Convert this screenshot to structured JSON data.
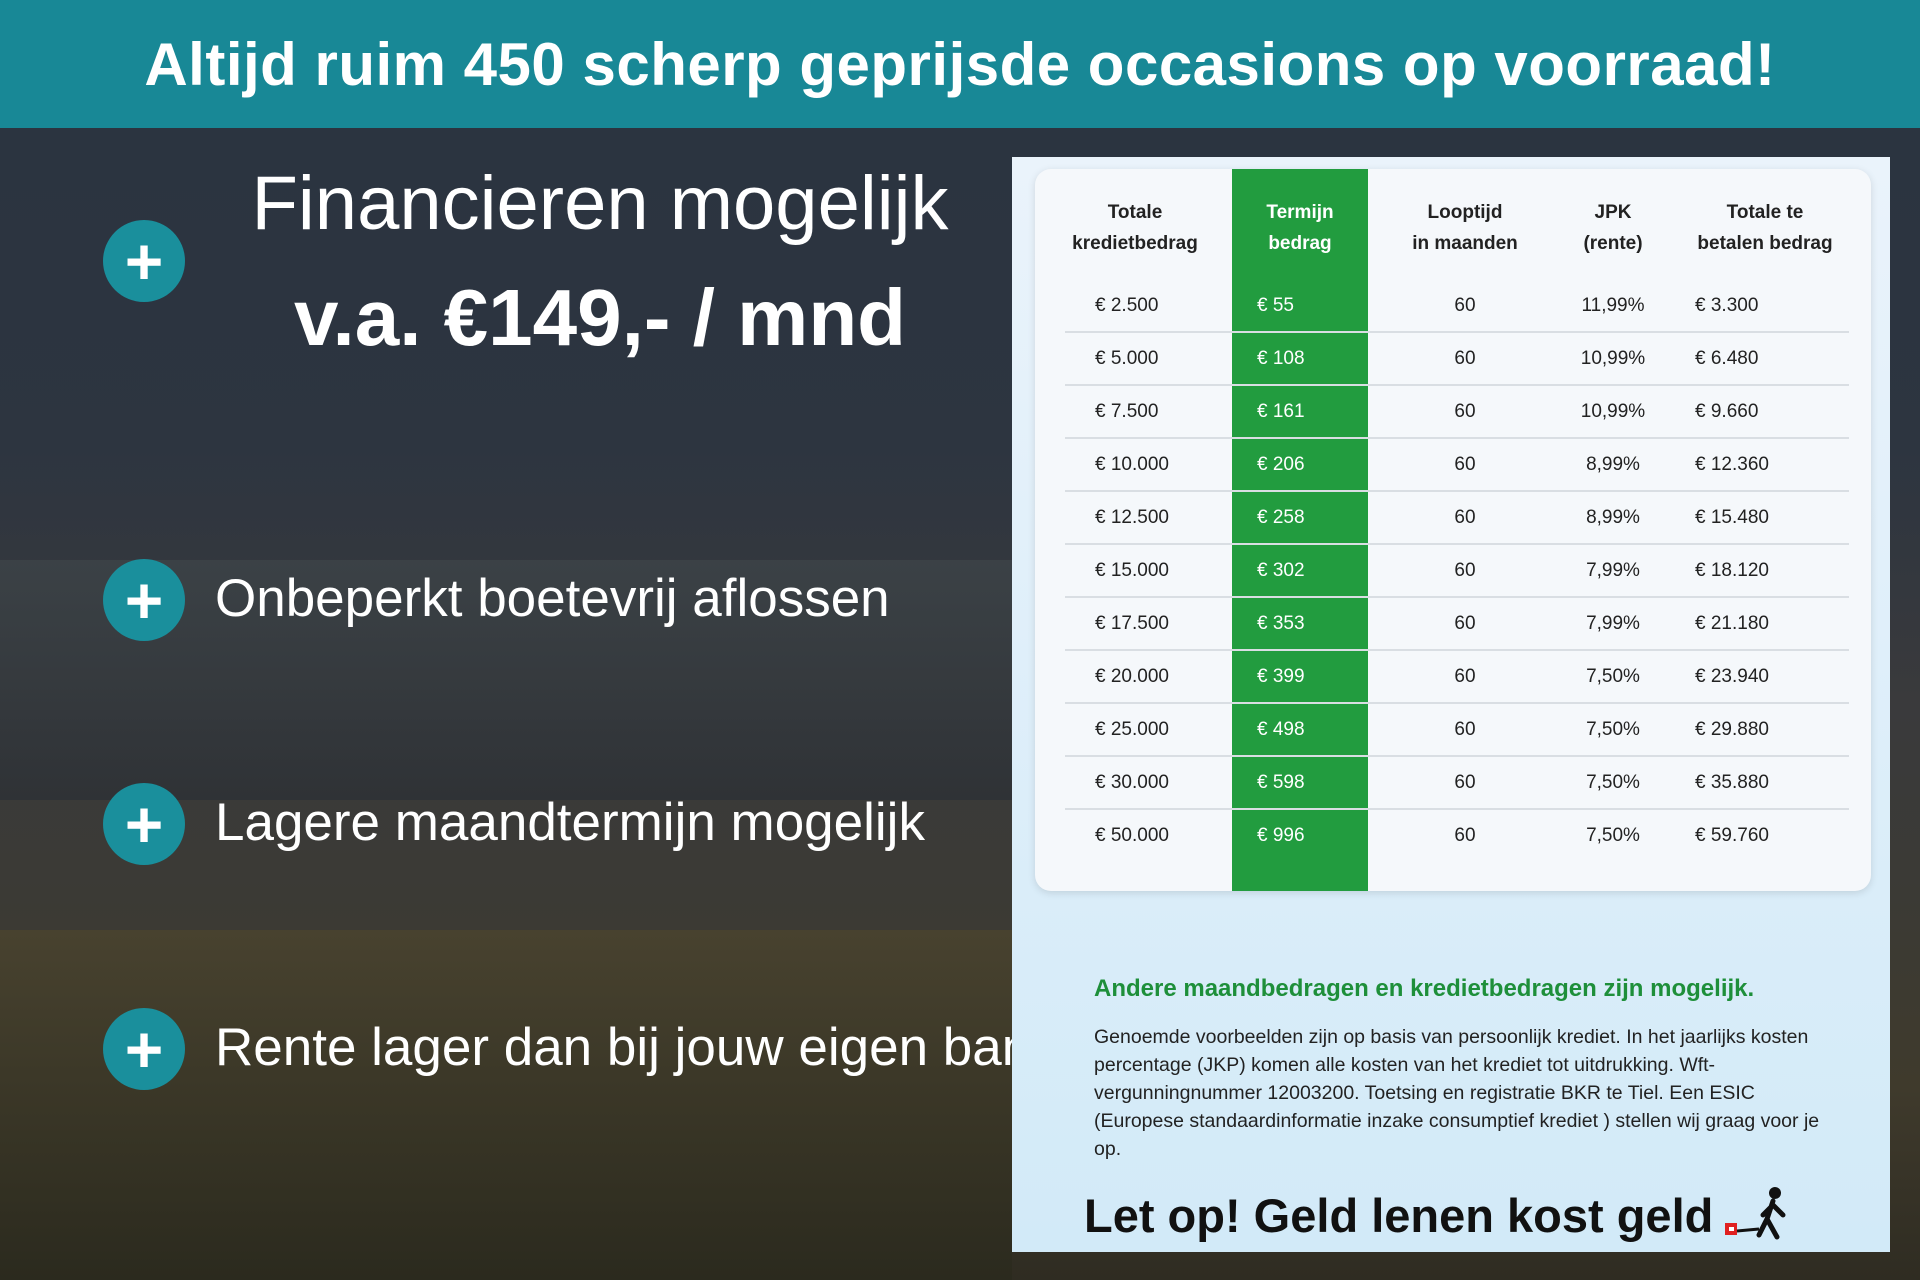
{
  "header": {
    "title": "Altijd ruim 450 scherp geprijsde occasions op voorraad!"
  },
  "financing": {
    "line1": "Financieren mogelijk",
    "line2": "v.a. €149,- / mnd"
  },
  "features": [
    "Onbeperkt boetevrij aflossen",
    "Lagere maandtermijn mogelijk",
    "Rente lager dan bij jouw eigen bank"
  ],
  "table": {
    "headers": [
      [
        "Totale",
        "kredietbedrag"
      ],
      [
        "Termijn",
        "bedrag"
      ],
      [
        "Looptijd",
        "in maanden"
      ],
      [
        "JPK",
        "(rente)"
      ],
      [
        "Totale te",
        "betalen bedrag"
      ]
    ],
    "rows": [
      [
        "€ 2.500",
        "€ 55",
        "60",
        "11,99%",
        "€ 3.300"
      ],
      [
        "€ 5.000",
        "€ 108",
        "60",
        "10,99%",
        "€ 6.480"
      ],
      [
        "€ 7.500",
        "€ 161",
        "60",
        "10,99%",
        "€ 9.660"
      ],
      [
        "€ 10.000",
        "€ 206",
        "60",
        "8,99%",
        "€ 12.360"
      ],
      [
        "€ 12.500",
        "€ 258",
        "60",
        "8,99%",
        "€ 15.480"
      ],
      [
        "€ 15.000",
        "€ 302",
        "60",
        "7,99%",
        "€ 18.120"
      ],
      [
        "€ 17.500",
        "€ 353",
        "60",
        "7,99%",
        "€ 21.180"
      ],
      [
        "€ 20.000",
        "€ 399",
        "60",
        "7,50%",
        "€ 23.940"
      ],
      [
        "€ 25.000",
        "€ 498",
        "60",
        "7,50%",
        "€ 29.880"
      ],
      [
        "€ 30.000",
        "€ 598",
        "60",
        "7,50%",
        "€ 35.880"
      ],
      [
        "€ 50.000",
        "€ 996",
        "60",
        "7,50%",
        "€ 59.760"
      ]
    ]
  },
  "other_amounts": "Andere maandbedragen en kredietbedragen zijn mogelijk.",
  "fine_print": "Genoemde voorbeelden zijn op basis van persoonlijk krediet. In het jaarlijks kosten percentage (JKP) komen alle kosten van het krediet tot uitdrukking. Wft-vergunningnummer 12003200. Toetsing en registratie BKR te Tiel. Een ESIC (Europese standaardinformatie inzake consumptief krediet ) stellen wij graag voor je op.",
  "warning": "Let op! Geld lenen kost geld",
  "colors": {
    "header": "#188896",
    "plus": "#1a8f9c",
    "green": "#229c3f"
  }
}
